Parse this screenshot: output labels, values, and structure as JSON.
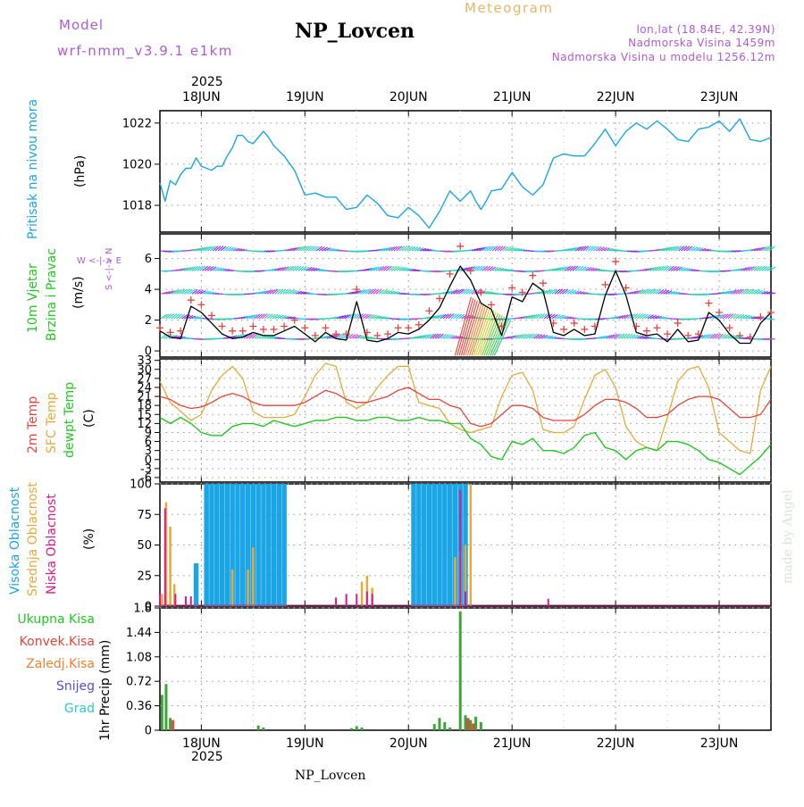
{
  "header": {
    "model_label": "Model",
    "model_name": "wrf-nmm_v3.9.1 e1km",
    "title": "NP_Lovcen",
    "meteogram_label": "Meteogram",
    "lonlat": "lon,lat (18.84E, 42.39N)",
    "altitude": "Nadmorska Visina 1459m",
    "model_altitude": "Nadmorska Visina u modelu 1256.12m",
    "year_top": "2025",
    "year_bottom": "2025",
    "footer_station": "NP_Lovcen",
    "watermark": "made by Angel"
  },
  "colors": {
    "pressure": "#1aa6e6",
    "temp2m": "#e8443a",
    "sfc_temp": "#e6a93a",
    "dewpoint": "#22c822",
    "wind_speed": "#000000",
    "gust": "#e8443a",
    "high_cloud": "#1aa6e6",
    "mid_cloud": "#e6a93a",
    "low_cloud": "#d81b8a",
    "total_precip": "#3aa63a",
    "conv_precip": "#e8443a",
    "freezing": "#f08030",
    "snow": "#5050e0",
    "hail": "#30c8c8",
    "label_violet": "#b05ad6"
  },
  "x_axis": {
    "days": [
      "18JUN",
      "19JUN",
      "20JUN",
      "21JUN",
      "22JUN",
      "23JUN"
    ],
    "start_day_offset": 0.6,
    "end_day_offset": 6.5
  },
  "panel_labels": {
    "pressure": {
      "name": "Pritisak na nivou mora",
      "unit": "(hPa)"
    },
    "wind": {
      "name1": "10m Vjetar",
      "name2": "Brzina i Pravac",
      "unit": "(m/s)",
      "compass": "W <-|-> E",
      "compass_v": "S <-|-> N"
    },
    "temp": {
      "name1": "2m Temp",
      "name2": "SFC Temp",
      "name3": "dewpt Temp",
      "unit": "(C)"
    },
    "cloud": {
      "name1": "Visoka Oblacnost",
      "name2": "Srednja Oblacnost",
      "name3": "Niska Oblacnost",
      "unit": "(%)"
    },
    "precip": {
      "items": [
        "Ukupna Kisa",
        "Konvek.Kisa",
        "Zaledj.Kisa",
        "Snijeg",
        "Grad"
      ],
      "unit": "1hr Precip (mm)"
    }
  },
  "chart_data": [
    {
      "type": "line",
      "name": "pressure",
      "ylabel": "(hPa)",
      "ylim": [
        1016.7,
        1022.6
      ],
      "yticks": [
        1018,
        1020,
        1022
      ],
      "grid": true,
      "series": [
        {
          "name": "Pritisak na nivou mora",
          "x": [
            0.6,
            0.65,
            0.7,
            0.75,
            0.8,
            0.85,
            0.9,
            0.95,
            1.0,
            1.05,
            1.1,
            1.15,
            1.2,
            1.25,
            1.3,
            1.35,
            1.4,
            1.45,
            1.5,
            1.55,
            1.6,
            1.65,
            1.7,
            1.8,
            1.9,
            2.0,
            2.1,
            2.2,
            2.3,
            2.4,
            2.5,
            2.6,
            2.7,
            2.8,
            2.9,
            3.0,
            3.1,
            3.2,
            3.3,
            3.4,
            3.5,
            3.6,
            3.65,
            3.7,
            3.75,
            3.8,
            3.9,
            4.0,
            4.1,
            4.2,
            4.3,
            4.4,
            4.5,
            4.6,
            4.7,
            4.8,
            4.9,
            5.0,
            5.1,
            5.2,
            5.3,
            5.4,
            5.5,
            5.6,
            5.7,
            5.8,
            5.9,
            6.0,
            6.1,
            6.2,
            6.3,
            6.4,
            6.5
          ],
          "values": [
            1019.1,
            1018.2,
            1019.2,
            1019.0,
            1019.5,
            1019.8,
            1019.8,
            1020.3,
            1019.9,
            1019.8,
            1019.7,
            1019.9,
            1019.9,
            1020.4,
            1020.8,
            1021.4,
            1021.4,
            1021.1,
            1021.0,
            1021.3,
            1021.6,
            1021.3,
            1020.9,
            1020.4,
            1019.7,
            1018.5,
            1018.6,
            1018.4,
            1018.4,
            1017.8,
            1017.9,
            1018.5,
            1018.1,
            1017.5,
            1017.4,
            1017.9,
            1017.5,
            1016.9,
            1017.7,
            1018.7,
            1018.2,
            1018.7,
            1018.2,
            1017.8,
            1018.2,
            1018.7,
            1018.8,
            1019.6,
            1018.9,
            1018.5,
            1019.0,
            1020.3,
            1020.5,
            1020.4,
            1020.4,
            1021.0,
            1021.7,
            1020.9,
            1021.6,
            1022.0,
            1021.7,
            1022.1,
            1021.7,
            1021.2,
            1021.1,
            1021.7,
            1021.8,
            1022.1,
            1021.6,
            1022.2,
            1021.2,
            1021.1,
            1021.3
          ]
        }
      ]
    },
    {
      "type": "line",
      "name": "wind",
      "ylabel": "(m/s)",
      "ylim": [
        -0.4,
        7.6
      ],
      "yticks": [
        0,
        2,
        4,
        6
      ],
      "grid": true,
      "series": [
        {
          "name": "wind speed",
          "x": [
            0.6,
            0.7,
            0.8,
            0.9,
            1.0,
            1.1,
            1.2,
            1.3,
            1.4,
            1.5,
            1.6,
            1.7,
            1.8,
            1.9,
            2.0,
            2.1,
            2.2,
            2.3,
            2.4,
            2.5,
            2.6,
            2.7,
            2.8,
            2.9,
            3.0,
            3.1,
            3.2,
            3.3,
            3.4,
            3.5,
            3.6,
            3.7,
            3.8,
            3.9,
            4.0,
            4.1,
            4.2,
            4.3,
            4.4,
            4.5,
            4.6,
            4.7,
            4.8,
            4.9,
            5.0,
            5.1,
            5.2,
            5.3,
            5.4,
            5.5,
            5.6,
            5.7,
            5.8,
            5.9,
            6.0,
            6.1,
            6.2,
            6.3,
            6.4,
            6.5
          ],
          "values": [
            1.3,
            0.9,
            0.8,
            2.9,
            2.5,
            1.8,
            1.1,
            0.8,
            0.9,
            1.2,
            1.0,
            1.0,
            1.3,
            1.6,
            1.1,
            0.6,
            1.2,
            0.8,
            0.7,
            3.2,
            0.7,
            0.6,
            0.8,
            1.2,
            1.1,
            1.4,
            2.0,
            2.8,
            4.2,
            5.5,
            4.6,
            3.1,
            2.7,
            1.0,
            3.5,
            3.2,
            4.4,
            3.9,
            1.2,
            1.0,
            1.4,
            1.0,
            1.1,
            3.6,
            5.2,
            3.6,
            1.2,
            1.0,
            1.1,
            0.6,
            1.4,
            0.6,
            0.7,
            2.5,
            2.0,
            1.1,
            0.5,
            0.5,
            1.8,
            2.5
          ]
        },
        {
          "name": "gust",
          "x": [
            0.6,
            0.7,
            0.8,
            0.9,
            1.0,
            1.1,
            1.2,
            1.3,
            1.4,
            1.5,
            1.6,
            1.7,
            1.8,
            1.9,
            2.0,
            2.1,
            2.2,
            2.3,
            2.4,
            2.5,
            2.6,
            2.7,
            2.8,
            2.9,
            3.0,
            3.1,
            3.2,
            3.3,
            3.4,
            3.5,
            3.6,
            3.7,
            3.8,
            3.9,
            4.0,
            4.1,
            4.2,
            4.3,
            4.4,
            4.5,
            4.6,
            4.7,
            4.8,
            4.9,
            5.0,
            5.1,
            5.2,
            5.3,
            5.4,
            5.5,
            5.6,
            5.7,
            5.8,
            5.9,
            6.0,
            6.1,
            6.2,
            6.3,
            6.4,
            6.5
          ],
          "values": [
            1.5,
            1.2,
            1.3,
            3.3,
            3.0,
            2.3,
            1.6,
            1.3,
            1.3,
            1.6,
            1.4,
            1.4,
            1.6,
            2.0,
            1.5,
            1.0,
            1.5,
            1.1,
            1.1,
            4.0,
            1.2,
            1.0,
            1.1,
            1.5,
            1.5,
            1.7,
            2.6,
            3.4,
            5.0,
            6.8,
            5.2,
            3.8,
            3.0,
            1.6,
            4.1,
            3.8,
            4.9,
            4.4,
            1.8,
            1.4,
            1.8,
            1.4,
            1.6,
            4.3,
            5.8,
            4.1,
            1.6,
            1.3,
            1.5,
            1.1,
            1.8,
            1.0,
            1.1,
            3.1,
            2.5,
            1.5,
            1.0,
            0.9,
            2.2,
            2.5
          ]
        }
      ]
    },
    {
      "type": "line",
      "name": "temperature",
      "ylabel": "(C)",
      "ylim": [
        -7.5,
        33.5
      ],
      "yticks": [
        -6,
        -3,
        0,
        3,
        6,
        9,
        12,
        15,
        18,
        21,
        24,
        27,
        30,
        33
      ],
      "grid": true,
      "series": [
        {
          "name": "2m Temp",
          "x": [
            0.6,
            0.7,
            0.8,
            0.9,
            1.0,
            1.1,
            1.2,
            1.3,
            1.4,
            1.5,
            1.6,
            1.7,
            1.8,
            1.9,
            2.0,
            2.1,
            2.2,
            2.3,
            2.4,
            2.5,
            2.6,
            2.7,
            2.8,
            2.9,
            3.0,
            3.1,
            3.2,
            3.3,
            3.4,
            3.5,
            3.6,
            3.7,
            3.8,
            3.9,
            4.0,
            4.1,
            4.2,
            4.3,
            4.4,
            4.5,
            4.6,
            4.7,
            4.8,
            4.9,
            5.0,
            5.1,
            5.2,
            5.3,
            5.4,
            5.5,
            5.6,
            5.7,
            5.8,
            5.9,
            6.0,
            6.1,
            6.2,
            6.3,
            6.4,
            6.5
          ],
          "values": [
            21,
            20,
            18,
            17,
            17.5,
            19,
            21,
            22,
            21,
            19,
            18,
            18,
            18,
            18,
            19,
            21,
            23,
            22,
            20,
            19,
            19,
            20,
            21,
            23,
            24,
            22,
            20,
            20,
            18,
            17,
            12,
            11,
            12,
            15,
            18,
            18,
            17,
            14,
            13,
            13,
            13,
            15,
            18,
            20,
            20,
            19,
            17,
            14,
            14,
            15,
            18,
            20,
            21,
            21,
            20,
            17,
            14,
            14,
            15,
            20
          ]
        },
        {
          "name": "SFC Temp",
          "x": [
            0.6,
            0.7,
            0.8,
            0.9,
            1.0,
            1.1,
            1.2,
            1.3,
            1.4,
            1.5,
            1.6,
            1.7,
            1.8,
            1.9,
            2.0,
            2.1,
            2.2,
            2.3,
            2.4,
            2.5,
            2.6,
            2.7,
            2.8,
            2.9,
            3.0,
            3.1,
            3.2,
            3.3,
            3.4,
            3.5,
            3.6,
            3.7,
            3.8,
            3.9,
            4.0,
            4.1,
            4.2,
            4.3,
            4.4,
            4.5,
            4.6,
            4.7,
            4.8,
            4.9,
            5.0,
            5.1,
            5.2,
            5.3,
            5.4,
            5.5,
            5.6,
            5.7,
            5.8,
            5.9,
            6.0,
            6.1,
            6.2,
            6.3,
            6.4,
            6.5
          ],
          "values": [
            26,
            19,
            16,
            13,
            15,
            23,
            28,
            31,
            27,
            16,
            14,
            14,
            14,
            15,
            21,
            28,
            32,
            31,
            19,
            17,
            19,
            24,
            28,
            31,
            31,
            19,
            18,
            17,
            12,
            10,
            9,
            10,
            11,
            21,
            28,
            29,
            23,
            10,
            9,
            9,
            11,
            20,
            28,
            30,
            24,
            11,
            6,
            4,
            3,
            14,
            26,
            30,
            31,
            24,
            9,
            6,
            3,
            2,
            23,
            31
          ]
        },
        {
          "name": "dewpt Temp",
          "x": [
            0.6,
            0.7,
            0.8,
            0.9,
            1.0,
            1.1,
            1.2,
            1.3,
            1.4,
            1.5,
            1.6,
            1.7,
            1.8,
            1.9,
            2.0,
            2.1,
            2.2,
            2.3,
            2.4,
            2.5,
            2.6,
            2.7,
            2.8,
            2.9,
            3.0,
            3.1,
            3.2,
            3.3,
            3.4,
            3.5,
            3.6,
            3.7,
            3.8,
            3.9,
            4.0,
            4.1,
            4.2,
            4.3,
            4.4,
            4.5,
            4.6,
            4.7,
            4.8,
            4.9,
            5.0,
            5.1,
            5.2,
            5.3,
            5.4,
            5.5,
            5.6,
            5.7,
            5.8,
            5.9,
            6.0,
            6.1,
            6.2,
            6.3,
            6.4,
            6.5
          ],
          "values": [
            14,
            12,
            14,
            12,
            9,
            8,
            8,
            11,
            12,
            12,
            11,
            13,
            12,
            11,
            12,
            13,
            13,
            14,
            14,
            13,
            13,
            14,
            14,
            13,
            13,
            14,
            13,
            13,
            12,
            12,
            7,
            5,
            1,
            0,
            6,
            5,
            7,
            3,
            3,
            2,
            4,
            8,
            9,
            4,
            3,
            0,
            3,
            4,
            3,
            6,
            6,
            5,
            3,
            0,
            -1,
            -3,
            -5,
            -2,
            1,
            5
          ]
        }
      ]
    },
    {
      "type": "bar",
      "name": "cloud",
      "ylabel": "(%)",
      "ylim": [
        0,
        100
      ],
      "yticks": [
        0,
        25,
        50,
        75,
        100
      ],
      "grid": true,
      "series": [
        {
          "name": "Visoka Oblacnost",
          "x": [
            0.95,
            1.05,
            1.1,
            1.15,
            1.2,
            1.25,
            1.3,
            1.35,
            1.4,
            1.45,
            1.5,
            1.55,
            1.6,
            1.65,
            1.7,
            1.75,
            1.8,
            3.05,
            3.1,
            3.15,
            3.2,
            3.25,
            3.3,
            3.35,
            3.4,
            3.45,
            3.5,
            3.55
          ],
          "values": [
            35,
            100,
            100,
            100,
            100,
            100,
            100,
            100,
            100,
            100,
            100,
            100,
            100,
            100,
            100,
            100,
            100,
            100,
            100,
            100,
            100,
            100,
            100,
            100,
            100,
            100,
            100,
            100
          ]
        },
        {
          "name": "Srednja Oblacnost",
          "x": [
            0.62,
            0.66,
            0.7,
            0.74,
            1.3,
            1.45,
            1.5,
            2.55,
            2.6,
            2.65,
            3.45,
            3.5,
            3.55,
            3.6
          ],
          "values": [
            10,
            85,
            65,
            18,
            30,
            30,
            48,
            20,
            25,
            15,
            40,
            45,
            50,
            100
          ]
        },
        {
          "name": "Niska Oblacnost",
          "x": [
            0.6,
            0.65,
            0.75,
            0.85,
            0.9,
            2.3,
            2.4,
            2.5,
            2.6,
            2.65,
            3.5,
            3.55,
            4.35
          ],
          "values": [
            10,
            80,
            10,
            8,
            8,
            7,
            10,
            10,
            12,
            10,
            95,
            12,
            6
          ]
        }
      ]
    },
    {
      "type": "bar",
      "name": "precip",
      "ylabel": "1hr Precip (mm)",
      "ylim": [
        0,
        1.8
      ],
      "yticks": [
        0,
        0.36,
        0.72,
        1.08,
        1.44,
        1.8
      ],
      "grid": true,
      "series": [
        {
          "name": "Ukupna Kisa",
          "x": [
            0.62,
            0.66,
            0.7,
            1.55,
            1.6,
            2.45,
            2.5,
            2.55,
            3.25,
            3.3,
            3.35,
            3.4,
            3.5,
            3.55,
            3.6,
            3.65,
            3.7
          ],
          "values": [
            0.52,
            0.68,
            0.18,
            0.07,
            0.04,
            0.03,
            0.06,
            0.04,
            0.09,
            0.18,
            0.12,
            0.04,
            1.75,
            0.22,
            0.15,
            0.2,
            0.12
          ]
        },
        {
          "name": "Konvek.Kisa",
          "x": [
            0.7,
            3.55,
            3.6
          ],
          "values": [
            0.15,
            0.18,
            0.1
          ]
        }
      ]
    }
  ]
}
